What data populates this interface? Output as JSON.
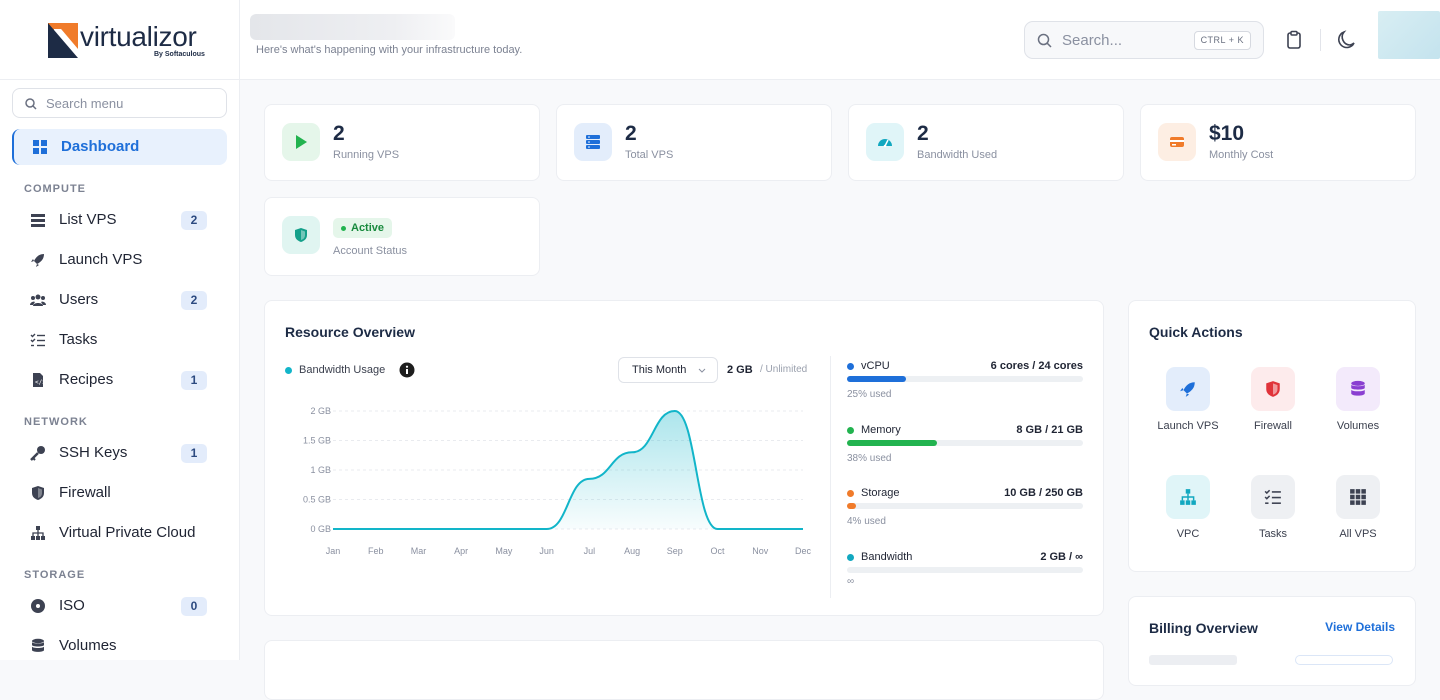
{
  "app": {
    "name": "virtualizor",
    "by": "By Softaculous"
  },
  "sidebar": {
    "search_placeholder": "Search menu",
    "dashboard": "Dashboard",
    "sections": {
      "compute": "COMPUTE",
      "network": "NETWORK",
      "storage": "STORAGE"
    },
    "items": [
      {
        "label": "List VPS",
        "count": "2",
        "icon": "server-icon"
      },
      {
        "label": "Launch VPS",
        "icon": "rocket-icon"
      },
      {
        "label": "Users",
        "count": "2",
        "icon": "users-icon"
      },
      {
        "label": "Tasks",
        "icon": "tasks-icon"
      },
      {
        "label": "Recipes",
        "count": "1",
        "icon": "recipe-icon"
      },
      {
        "label": "SSH Keys",
        "count": "1",
        "icon": "key-icon"
      },
      {
        "label": "Firewall",
        "icon": "shield-icon"
      },
      {
        "label": "Virtual Private Cloud",
        "icon": "network-icon"
      },
      {
        "label": "ISO",
        "count": "0",
        "icon": "disc-icon"
      },
      {
        "label": "Volumes",
        "icon": "database-icon"
      }
    ]
  },
  "header": {
    "subtitle": "Here's what's happening with your infrastructure today.",
    "search_placeholder": "Search...",
    "shortcut": "CTRL + K"
  },
  "stats": [
    {
      "value": "2",
      "label": "Running VPS",
      "color": "#22b34f"
    },
    {
      "value": "2",
      "label": "Total VPS",
      "color": "#1e6fd9"
    },
    {
      "value": "2",
      "label": "Bandwidth Used",
      "color": "#12a8c0"
    },
    {
      "value": "$10",
      "label": "Monthly Cost",
      "color": "#f07b2a"
    }
  ],
  "account": {
    "status": "Active",
    "label": "Account Status"
  },
  "resource": {
    "title": "Resource Overview",
    "legend": "Bandwidth Usage",
    "period": "This Month",
    "total": "2 GB",
    "limit": "/ Unlimited",
    "rows": [
      {
        "name": "vCPU",
        "value": "6 cores / 24 cores",
        "pct_label": "25% used",
        "pct": 25,
        "color": "#1e6fd9"
      },
      {
        "name": "Memory",
        "value": "8 GB / 21 GB",
        "pct_label": "38% used",
        "pct": 38,
        "color": "#22b34f"
      },
      {
        "name": "Storage",
        "value": "10 GB / 250 GB",
        "pct_label": "4% used",
        "pct": 4,
        "color": "#f07b2a"
      },
      {
        "name": "Bandwidth",
        "value": "2 GB / ∞",
        "pct_label": "∞",
        "pct": 0,
        "color": "#12a8c0"
      }
    ]
  },
  "chart_data": {
    "type": "area",
    "series": [
      {
        "name": "Bandwidth Usage",
        "values": [
          0,
          0,
          0,
          0,
          0,
          0,
          0.85,
          1.3,
          2,
          0,
          0,
          0
        ]
      }
    ],
    "categories": [
      "Jan",
      "Feb",
      "Mar",
      "Apr",
      "May",
      "Jun",
      "Jul",
      "Aug",
      "Sep",
      "Oct",
      "Nov",
      "Dec"
    ],
    "yticks": [
      "0 GB",
      "0.5 GB",
      "1 GB",
      "1.5 GB",
      "2 GB"
    ],
    "ylim": [
      0,
      2
    ],
    "color": "#12b5c9",
    "grid": true
  },
  "quick": {
    "title": "Quick Actions",
    "items": [
      {
        "label": "Launch VPS",
        "icon": "rocket-icon"
      },
      {
        "label": "Firewall",
        "icon": "shield-icon"
      },
      {
        "label": "Volumes",
        "icon": "database-icon"
      },
      {
        "label": "VPC",
        "icon": "network-icon"
      },
      {
        "label": "Tasks",
        "icon": "tasks-icon"
      },
      {
        "label": "All VPS",
        "icon": "grid-icon"
      }
    ]
  },
  "billing": {
    "title": "Billing Overview",
    "link": "View Details"
  }
}
